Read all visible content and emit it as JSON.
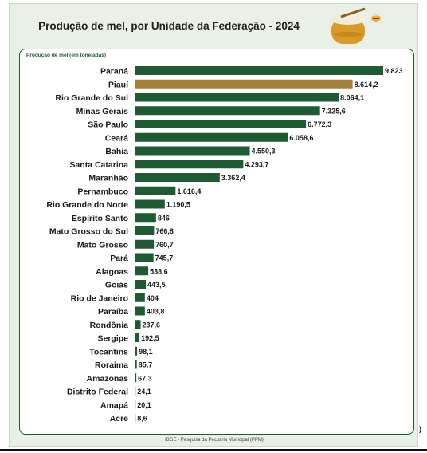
{
  "title": "Produção de mel, por Unidade da Federação - 2024",
  "footer": "IBGE - Pesquisa da Pecuária Municipal (PPM)",
  "corner_mark": ")",
  "colors": {
    "bar": "#1e5a32",
    "highlight": "#a8803d",
    "background": "#e9f0e6"
  },
  "chart_data": {
    "type": "bar",
    "orientation": "horizontal",
    "ylabel": "Produção de mel (em toneladas)",
    "highlight": "Piauí",
    "categories": [
      "Paraná",
      "Piauí",
      "Rio Grande do Sul",
      "Minas Gerais",
      "São Paulo",
      "Ceará",
      "Bahia",
      "Santa Catarina",
      "Maranhão",
      "Pernambuco",
      "Rio Grande do Norte",
      "Espírito Santo",
      "Mato Grosso do Sul",
      "Mato Grosso",
      "Pará",
      "Alagoas",
      "Goiás",
      "Rio de Janeiro",
      "Paraíba",
      "Rondônia",
      "Sergipe",
      "Tocantins",
      "Roraima",
      "Amazonas",
      "Distrito Federal",
      "Amapá",
      "Acre"
    ],
    "values": [
      9823,
      8614.2,
      8064.1,
      7325.6,
      6772.3,
      6058.6,
      4550.3,
      4293.7,
      3362.4,
      1616.4,
      1190.5,
      846,
      766.8,
      760.7,
      745.7,
      538.6,
      443.5,
      404,
      403.8,
      237.6,
      192.5,
      98.1,
      85.7,
      67.3,
      24.1,
      20.1,
      8.6
    ],
    "value_labels": [
      "9.823",
      "8.614,2",
      "8.064,1",
      "7.325,6",
      "6.772,3",
      "6.058,6",
      "4.550,3",
      "4.293,7",
      "3.362,4",
      "1.616,4",
      "1.190,5",
      "846",
      "766,8",
      "760,7",
      "745,7",
      "538,6",
      "443,5",
      "404",
      "403,8",
      "237,6",
      "192,5",
      "98,1",
      "85,7",
      "67,3",
      "24,1",
      "20,1",
      "8,6"
    ]
  }
}
